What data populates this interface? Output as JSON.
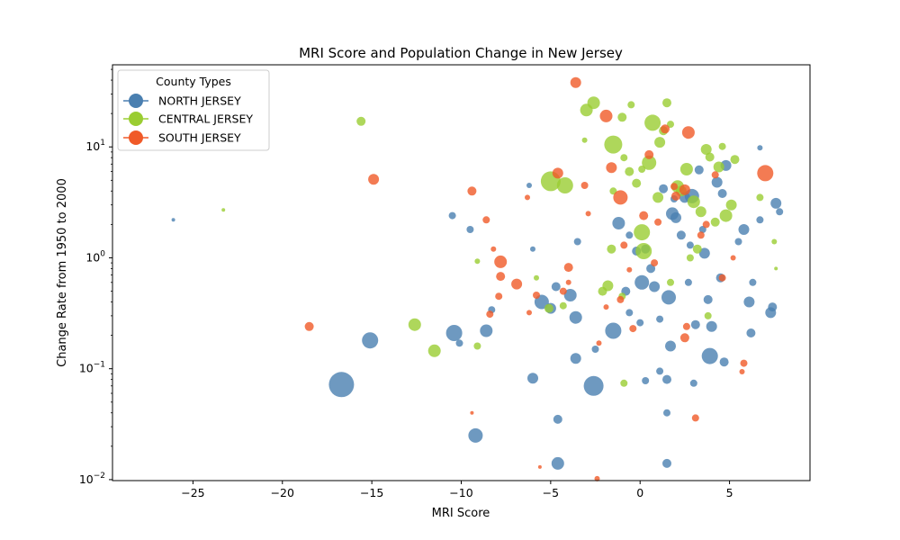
{
  "chart_data": {
    "type": "scatter",
    "title": "MRI Score and Population Change in New Jersey",
    "xlabel": "MRI Score",
    "ylabel": "Change Rate from 1950 to 2000",
    "xlim": [
      -29.5,
      9.5
    ],
    "ylim": [
      0.0098,
      55
    ],
    "yscale": "log",
    "x_ticks": [
      -25,
      -20,
      -15,
      -10,
      -5,
      0,
      5
    ],
    "x_tick_labels": [
      "−25",
      "−20",
      "−15",
      "−10",
      "−5",
      "0",
      "5"
    ],
    "y_ticks": [
      {
        "value": 0.01,
        "base": "10",
        "exp": "−2"
      },
      {
        "value": 0.1,
        "base": "10",
        "exp": "−1"
      },
      {
        "value": 1,
        "base": "10",
        "exp": "0"
      },
      {
        "value": 10,
        "base": "10",
        "exp": "1"
      }
    ],
    "legend": {
      "title": "County Types",
      "position": "top-left",
      "entries": [
        {
          "label": "NORTH JERSEY",
          "color": "#4a7fb0"
        },
        {
          "label": "CENTRAL JERSEY",
          "color": "#9acd32"
        },
        {
          "label": "SOUTH JERSEY",
          "color": "#f05a28"
        }
      ]
    },
    "series": [
      {
        "name": "NORTH JERSEY",
        "color": "#4a7fb0",
        "points": [
          [
            -26.1,
            2.2,
            2
          ],
          [
            -16.7,
            0.072,
            14
          ],
          [
            -15.1,
            0.18,
            9
          ],
          [
            -10.4,
            0.21,
            9
          ],
          [
            -9.2,
            0.025,
            8
          ],
          [
            -8.6,
            0.22,
            7
          ],
          [
            -10.1,
            0.17,
            4
          ],
          [
            -10.5,
            2.4,
            4
          ],
          [
            -9.5,
            1.8,
            4
          ],
          [
            -8.3,
            0.34,
            4
          ],
          [
            -6.2,
            4.5,
            3
          ],
          [
            -6.0,
            1.2,
            3
          ],
          [
            -5.5,
            0.4,
            8
          ],
          [
            -5.0,
            0.35,
            6
          ],
          [
            -4.7,
            0.55,
            5
          ],
          [
            -4.6,
            0.035,
            5
          ],
          [
            -4.6,
            0.014,
            7
          ],
          [
            -3.9,
            0.46,
            7
          ],
          [
            -3.6,
            0.29,
            7
          ],
          [
            -3.6,
            0.124,
            6
          ],
          [
            -3.5,
            1.4,
            4
          ],
          [
            -2.6,
            0.07,
            11
          ],
          [
            -2.5,
            0.15,
            4
          ],
          [
            -1.5,
            0.22,
            9
          ],
          [
            -1.2,
            2.05,
            7
          ],
          [
            -0.8,
            0.5,
            5
          ],
          [
            -0.6,
            0.32,
            4
          ],
          [
            -0.2,
            1.15,
            5
          ],
          [
            0.1,
            0.6,
            8
          ],
          [
            0.3,
            1.2,
            5
          ],
          [
            0.6,
            0.8,
            5
          ],
          [
            0.8,
            0.55,
            6
          ],
          [
            1.1,
            0.28,
            4
          ],
          [
            1.3,
            4.2,
            5
          ],
          [
            1.6,
            0.44,
            8
          ],
          [
            1.7,
            0.16,
            6
          ],
          [
            1.5,
            0.08,
            5
          ],
          [
            1.5,
            0.04,
            4
          ],
          [
            1.5,
            0.014,
            5
          ],
          [
            1.8,
            2.5,
            7
          ],
          [
            2.0,
            2.3,
            6
          ],
          [
            2.3,
            1.6,
            5
          ],
          [
            2.5,
            3.5,
            6
          ],
          [
            2.7,
            0.6,
            4
          ],
          [
            2.9,
            3.6,
            8
          ],
          [
            3.1,
            0.25,
            5
          ],
          [
            3.3,
            6.2,
            5
          ],
          [
            3.5,
            1.8,
            4
          ],
          [
            3.6,
            1.1,
            6
          ],
          [
            3.8,
            0.42,
            5
          ],
          [
            3.9,
            0.13,
            9
          ],
          [
            4.0,
            0.24,
            6
          ],
          [
            4.3,
            4.8,
            6
          ],
          [
            4.5,
            0.66,
            5
          ],
          [
            4.6,
            3.8,
            5
          ],
          [
            4.7,
            0.115,
            5
          ],
          [
            4.8,
            6.8,
            6
          ],
          [
            5.5,
            1.4,
            4
          ],
          [
            5.8,
            1.8,
            6
          ],
          [
            6.1,
            0.4,
            6
          ],
          [
            6.2,
            0.21,
            5
          ],
          [
            6.3,
            0.6,
            4
          ],
          [
            6.7,
            2.2,
            4
          ],
          [
            6.7,
            9.8,
            3
          ],
          [
            7.3,
            0.32,
            6
          ],
          [
            7.4,
            0.36,
            5
          ],
          [
            7.6,
            3.1,
            6
          ],
          [
            7.8,
            2.6,
            4
          ],
          [
            3.0,
            0.074,
            4
          ],
          [
            0.3,
            0.078,
            4
          ],
          [
            1.1,
            0.095,
            4
          ],
          [
            -6.0,
            0.082,
            6
          ],
          [
            0.0,
            0.26,
            4
          ],
          [
            -0.6,
            1.6,
            4
          ],
          [
            1.9,
            3.4,
            4
          ],
          [
            2.8,
            1.3,
            4
          ]
        ]
      },
      {
        "name": "CENTRAL JERSEY",
        "color": "#9acd32",
        "points": [
          [
            -23.3,
            2.7,
            2
          ],
          [
            -15.6,
            17,
            5
          ],
          [
            -12.6,
            0.25,
            7
          ],
          [
            -11.5,
            0.145,
            7
          ],
          [
            -9.1,
            0.93,
            3
          ],
          [
            -9.1,
            0.16,
            4
          ],
          [
            -5.8,
            0.66,
            3
          ],
          [
            -5.1,
            0.35,
            5
          ],
          [
            -5.0,
            4.9,
            11
          ],
          [
            -4.2,
            4.5,
            9
          ],
          [
            -4.3,
            0.37,
            4
          ],
          [
            -3.1,
            11.5,
            3
          ],
          [
            -3.0,
            21.5,
            7
          ],
          [
            -2.6,
            25,
            7
          ],
          [
            -2.1,
            0.5,
            5
          ],
          [
            -1.8,
            0.56,
            6
          ],
          [
            -1.6,
            1.2,
            5
          ],
          [
            -1.5,
            10.5,
            10
          ],
          [
            -1.0,
            18.5,
            5
          ],
          [
            -1.0,
            0.45,
            4
          ],
          [
            -0.9,
            8.0,
            4
          ],
          [
            -0.6,
            6.0,
            5
          ],
          [
            -0.5,
            24,
            4
          ],
          [
            -0.2,
            4.7,
            5
          ],
          [
            0.1,
            1.7,
            9
          ],
          [
            0.2,
            1.15,
            9
          ],
          [
            0.5,
            7.2,
            8
          ],
          [
            0.7,
            16.5,
            9
          ],
          [
            1.0,
            3.5,
            6
          ],
          [
            1.1,
            11,
            6
          ],
          [
            1.3,
            14,
            5
          ],
          [
            1.5,
            25,
            5
          ],
          [
            1.7,
            16,
            4
          ],
          [
            2.1,
            4.4,
            7
          ],
          [
            2.3,
            4.0,
            6
          ],
          [
            2.6,
            6.3,
            7
          ],
          [
            3.0,
            3.2,
            7
          ],
          [
            3.2,
            1.2,
            5
          ],
          [
            3.4,
            2.6,
            6
          ],
          [
            3.7,
            9.5,
            6
          ],
          [
            3.9,
            8.1,
            5
          ],
          [
            4.2,
            2.1,
            5
          ],
          [
            4.4,
            6.6,
            6
          ],
          [
            4.6,
            10.1,
            4
          ],
          [
            4.8,
            2.4,
            7
          ],
          [
            5.1,
            3.0,
            6
          ],
          [
            5.3,
            7.7,
            5
          ],
          [
            6.7,
            3.5,
            4
          ],
          [
            7.5,
            1.4,
            3
          ],
          [
            7.6,
            0.8,
            2
          ],
          [
            1.7,
            0.6,
            4
          ],
          [
            3.8,
            0.3,
            4
          ],
          [
            -1.5,
            4.0,
            4
          ],
          [
            0.1,
            6.3,
            4
          ],
          [
            2.8,
            1.0,
            4
          ],
          [
            -0.9,
            0.074,
            4
          ]
        ]
      },
      {
        "name": "SOUTH JERSEY",
        "color": "#f05a28",
        "points": [
          [
            -18.5,
            0.24,
            5
          ],
          [
            -14.9,
            5.1,
            6
          ],
          [
            -9.4,
            0.04,
            2
          ],
          [
            -9.4,
            4.0,
            5
          ],
          [
            -8.6,
            2.2,
            4
          ],
          [
            -8.2,
            1.2,
            3
          ],
          [
            -8.4,
            0.31,
            4
          ],
          [
            -7.8,
            0.68,
            5
          ],
          [
            -7.8,
            0.92,
            7
          ],
          [
            -7.9,
            0.45,
            4
          ],
          [
            -6.9,
            0.58,
            6
          ],
          [
            -6.3,
            3.5,
            3
          ],
          [
            -6.2,
            0.32,
            3
          ],
          [
            -5.8,
            0.46,
            4
          ],
          [
            -5.6,
            0.013,
            2
          ],
          [
            -4.6,
            5.8,
            6
          ],
          [
            -4.3,
            0.5,
            4
          ],
          [
            -4.0,
            0.6,
            3
          ],
          [
            -4.0,
            0.82,
            5
          ],
          [
            -3.6,
            38,
            6
          ],
          [
            -3.1,
            4.5,
            4
          ],
          [
            -2.9,
            2.5,
            3
          ],
          [
            -2.4,
            0.0102,
            3
          ],
          [
            -1.9,
            0.36,
            3
          ],
          [
            -1.9,
            19,
            7
          ],
          [
            -1.6,
            6.5,
            6
          ],
          [
            -1.1,
            3.5,
            8
          ],
          [
            -1.1,
            0.42,
            4
          ],
          [
            -0.6,
            0.78,
            3
          ],
          [
            -0.4,
            0.23,
            4
          ],
          [
            0.2,
            2.4,
            5
          ],
          [
            0.5,
            8.5,
            5
          ],
          [
            1.0,
            2.1,
            4
          ],
          [
            1.4,
            14.5,
            5
          ],
          [
            2.0,
            3.6,
            5
          ],
          [
            2.5,
            4.1,
            6
          ],
          [
            2.5,
            0.19,
            5
          ],
          [
            2.6,
            0.24,
            4
          ],
          [
            2.7,
            13.5,
            7
          ],
          [
            3.1,
            0.036,
            4
          ],
          [
            3.4,
            1.6,
            4
          ],
          [
            4.2,
            5.6,
            4
          ],
          [
            4.6,
            0.66,
            4
          ],
          [
            5.2,
            1.0,
            3
          ],
          [
            5.8,
            0.112,
            4
          ],
          [
            5.7,
            0.094,
            3
          ],
          [
            7.0,
            5.8,
            9
          ],
          [
            -2.3,
            0.17,
            3
          ],
          [
            -0.9,
            1.3,
            4
          ],
          [
            0.8,
            0.9,
            4
          ],
          [
            1.9,
            4.4,
            4
          ],
          [
            3.7,
            2.0,
            4
          ]
        ]
      }
    ]
  }
}
